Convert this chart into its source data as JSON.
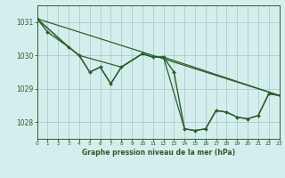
{
  "background_color": "#d4eeee",
  "grid_color": "#a8cccc",
  "line_color": "#2a5e2a",
  "title": "Graphe pression niveau de la mer (hPa)",
  "xlim": [
    0,
    23
  ],
  "ylim": [
    1027.5,
    1031.5
  ],
  "yticks": [
    1028,
    1029,
    1030,
    1031
  ],
  "xticks": [
    0,
    1,
    2,
    3,
    4,
    5,
    6,
    7,
    8,
    9,
    10,
    11,
    12,
    13,
    14,
    15,
    16,
    17,
    18,
    19,
    20,
    21,
    22,
    23
  ],
  "series": [
    {
      "x": [
        0,
        1,
        3,
        4,
        5,
        6,
        7,
        8,
        10,
        11,
        12,
        13,
        14,
        15,
        16,
        17,
        18,
        19,
        20,
        21,
        22,
        23
      ],
      "y": [
        1031.1,
        1030.7,
        1030.25,
        1030.0,
        1029.5,
        1029.65,
        1029.15,
        1029.65,
        1030.05,
        1029.95,
        1029.95,
        1029.5,
        1027.8,
        1027.75,
        1027.8,
        1028.35,
        1028.3,
        1028.15,
        1028.1,
        1028.2,
        1028.85,
        1028.8
      ],
      "marker": "D",
      "markersize": 2.0,
      "linewidth": 1.0
    },
    {
      "x": [
        0,
        23
      ],
      "y": [
        1031.1,
        1028.8
      ],
      "marker": null,
      "markersize": 0,
      "linewidth": 0.9
    },
    {
      "x": [
        0,
        3,
        4,
        8,
        10,
        11,
        12,
        14,
        15,
        16,
        17,
        18,
        19,
        20,
        21,
        22,
        23
      ],
      "y": [
        1031.1,
        1030.25,
        1030.0,
        1029.65,
        1030.05,
        1029.95,
        1029.95,
        1027.8,
        1027.75,
        1027.8,
        1028.35,
        1028.3,
        1028.15,
        1028.1,
        1028.2,
        1028.85,
        1028.8
      ],
      "marker": null,
      "markersize": 0,
      "linewidth": 0.9
    },
    {
      "x": [
        0,
        3,
        4,
        5,
        6,
        7,
        8,
        10,
        11,
        12,
        23
      ],
      "y": [
        1031.1,
        1030.25,
        1030.0,
        1029.5,
        1029.65,
        1029.15,
        1029.65,
        1030.05,
        1029.95,
        1029.95,
        1028.8
      ],
      "marker": null,
      "markersize": 0,
      "linewidth": 0.9
    }
  ]
}
